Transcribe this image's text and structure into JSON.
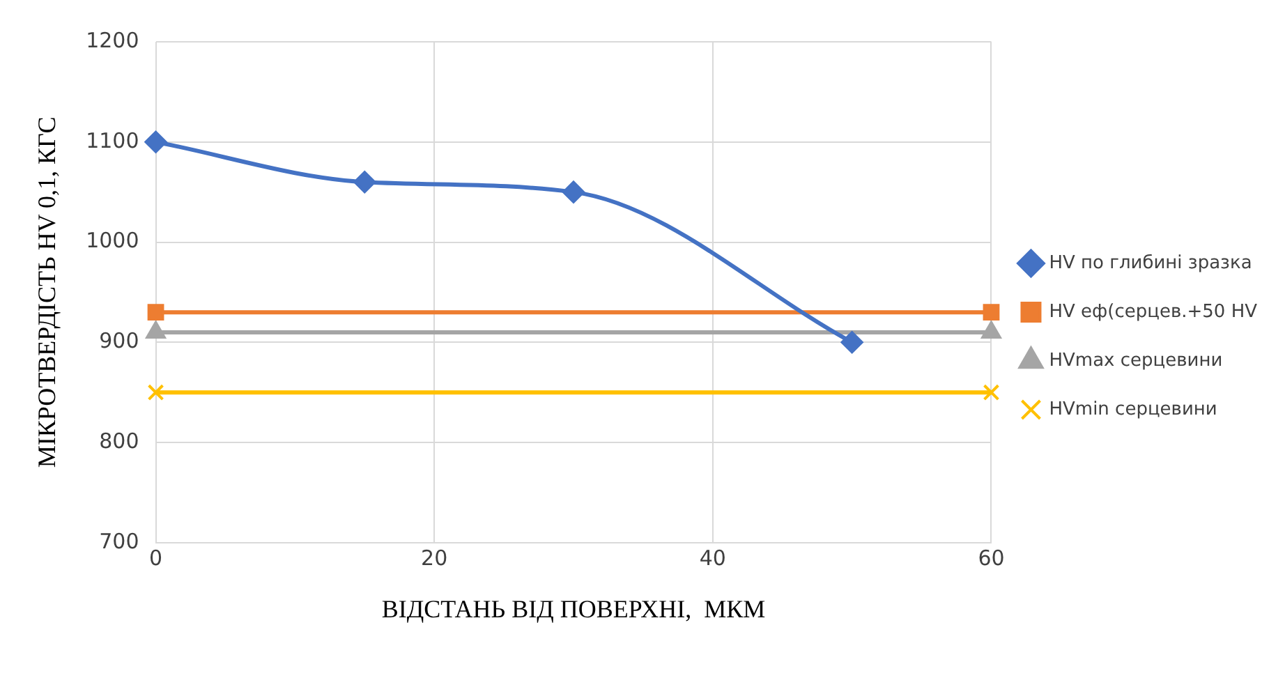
{
  "chart_data": {
    "type": "line",
    "xlabel": "ВІДСТАНЬ ВІД ПОВЕРХНІ,  МКМ",
    "ylabel": "МІКРОТВЕРДІСТЬ HV 0,1, КГС",
    "xlim": [
      0,
      60
    ],
    "xticks": [
      0,
      20,
      40,
      60
    ],
    "ylim": [
      700,
      1200
    ],
    "yticks": [
      700,
      800,
      900,
      1000,
      1100,
      1200
    ],
    "grid": true,
    "legend": "right",
    "series": [
      {
        "name": "HV по глибині зразка",
        "color": "#4472c4",
        "marker": "diamond",
        "x": [
          0,
          15,
          30,
          50
        ],
        "values": [
          1100,
          1060,
          1050,
          900
        ]
      },
      {
        "name": "HV еф(серцев.+50 HV",
        "color": "#ed7d31",
        "marker": "square",
        "x": [
          0,
          60
        ],
        "values": [
          930,
          930
        ]
      },
      {
        "name": "HVmax серцевини",
        "color": "#a5a5a5",
        "marker": "triangle",
        "x": [
          0,
          60
        ],
        "values": [
          910,
          910
        ]
      },
      {
        "name": "HVmin серцевини",
        "color": "#ffc000",
        "marker": "cross",
        "x": [
          0,
          60
        ],
        "values": [
          850,
          850
        ]
      }
    ]
  }
}
